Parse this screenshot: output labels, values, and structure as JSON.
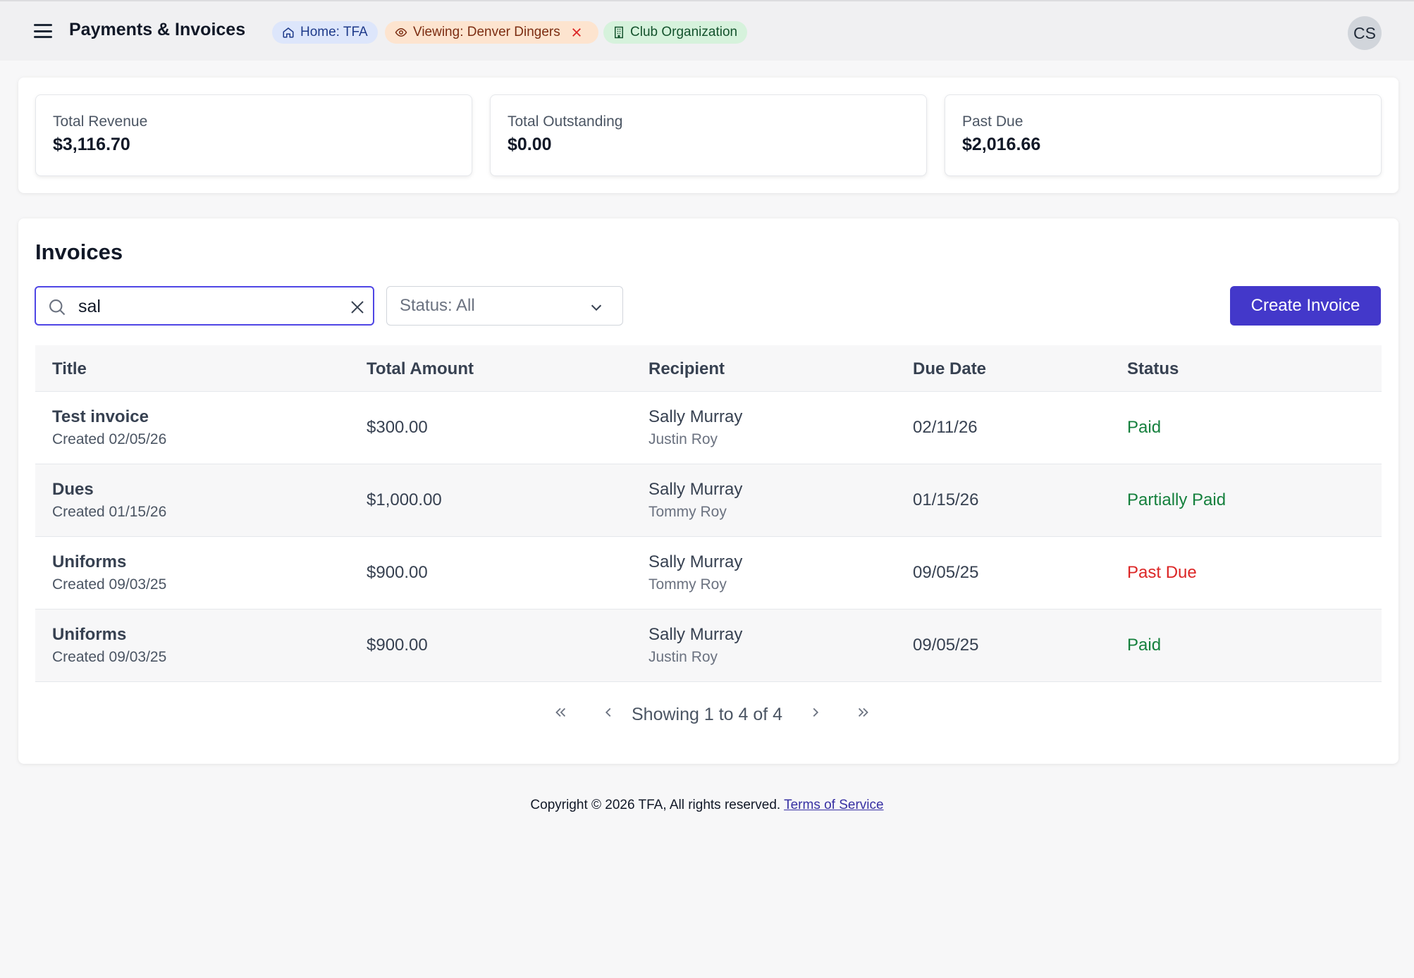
{
  "header": {
    "title": "Payments & Invoices",
    "chips": {
      "home": "Home: TFA",
      "viewing": "Viewing: Denver Dingers",
      "club": "Club Organization"
    },
    "avatar_initials": "CS"
  },
  "stats": [
    {
      "label": "Total Revenue",
      "value": "$3,116.70"
    },
    {
      "label": "Total Outstanding",
      "value": "$0.00"
    },
    {
      "label": "Past Due",
      "value": "$2,016.66"
    }
  ],
  "invoices": {
    "title": "Invoices",
    "search_value": "sal",
    "status_filter": "Status: All",
    "create_label": "Create Invoice",
    "columns": [
      "Title",
      "Total Amount",
      "Recipient",
      "Due Date",
      "Status"
    ],
    "rows": [
      {
        "title": "Test invoice",
        "created": "Created 02/05/26",
        "amount": "$300.00",
        "recipient": "Sally Murray",
        "recipient_sub": "Justin Roy",
        "due": "02/11/26",
        "status": "Paid"
      },
      {
        "title": "Dues",
        "created": "Created 01/15/26",
        "amount": "$1,000.00",
        "recipient": "Sally Murray",
        "recipient_sub": "Tommy Roy",
        "due": "01/15/26",
        "status": "Partially Paid"
      },
      {
        "title": "Uniforms",
        "created": "Created 09/03/25",
        "amount": "$900.00",
        "recipient": "Sally Murray",
        "recipient_sub": "Tommy Roy",
        "due": "09/05/25",
        "status": "Past Due"
      },
      {
        "title": "Uniforms",
        "created": "Created 09/03/25",
        "amount": "$900.00",
        "recipient": "Sally Murray",
        "recipient_sub": "Justin Roy",
        "due": "09/05/25",
        "status": "Paid"
      }
    ],
    "pagination_text": "Showing 1 to 4 of 4"
  },
  "footer": {
    "copyright": "Copyright © 2026 TFA, All rights reserved.",
    "terms_link": "Terms of Service"
  },
  "colors": {
    "accent": "#4338ca",
    "status_paid": "#15803d",
    "status_past_due": "#dc2626"
  },
  "icons": [
    "menu-icon",
    "home-icon",
    "eye-icon",
    "close-icon",
    "building-icon",
    "search-icon",
    "chevron-down-icon",
    "chevrons-left-icon",
    "chevron-left-icon",
    "chevron-right-icon",
    "chevrons-right-icon"
  ]
}
